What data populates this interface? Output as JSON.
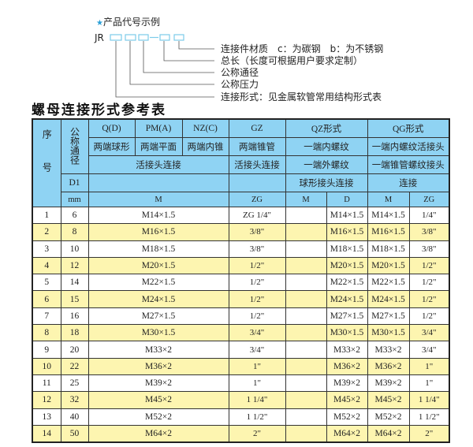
{
  "code_example": {
    "title": "产品代号示例",
    "prefix": "JR",
    "labels": [
      "连接件材质　c：为碳钢　b：为不锈钢",
      "总长（长度可根据用户要求定制）",
      "公称通径",
      "公称压力",
      "连接形式：见金属软管常用结构形式表"
    ],
    "accent": "#2a9fd6"
  },
  "table_title": "螺母连接形式参考表",
  "header": {
    "seq": "序号",
    "dn": "公称通径",
    "d1": "D1",
    "mm": "mm",
    "qd": "Q(D)",
    "pm": "PM(A)",
    "nz": "NZ(C)",
    "gz": "GZ",
    "qz": "QZ形式",
    "qg": "QG形式",
    "qd_desc": "两端球形",
    "pm_desc": "两端平面",
    "nz_desc": "两端内锥",
    "gz_desc": "两端锥管",
    "qz_desc1": "一端内螺纹",
    "qg_desc1": "一端内螺纹活接头",
    "union_conn": "活接头连接",
    "gz_conn": "活接头连接",
    "qz_desc2": "一端外螺纹",
    "qg_desc2": "一端锥管螺纹接头",
    "qz_desc3": "球形接头连接",
    "qg_desc3": "连接",
    "col_m": "M",
    "col_zg": "ZG",
    "qz_m": "M",
    "qz_d": "D",
    "qg_m": "M",
    "qg_zg": "ZG"
  },
  "rows": [
    {
      "seq": "1",
      "dn": "6",
      "m": "M14×1.5",
      "zg": "ZG 1/4\"",
      "qz_m": "",
      "qz_d": "M14×1.5",
      "qg_m": "M14×1.5",
      "qg_zg": "1/4\""
    },
    {
      "seq": "2",
      "dn": "8",
      "m": "M16×1.5",
      "zg": "3/8\"",
      "qz_m": "",
      "qz_d": "M16×1.5",
      "qg_m": "M16×1.5",
      "qg_zg": "3/8\""
    },
    {
      "seq": "3",
      "dn": "10",
      "m": "M18×1.5",
      "zg": "3/8\"",
      "qz_m": "",
      "qz_d": "M18×1.5",
      "qg_m": "M18×1.5",
      "qg_zg": "3/8\""
    },
    {
      "seq": "4",
      "dn": "12",
      "m": "M20×1.5",
      "zg": "1/2\"",
      "qz_m": "",
      "qz_d": "M20×1.5",
      "qg_m": "M20×1.5",
      "qg_zg": "1/2\""
    },
    {
      "seq": "5",
      "dn": "14",
      "m": "M22×1.5",
      "zg": "1/2\"",
      "qz_m": "",
      "qz_d": "M22×1.5",
      "qg_m": "M22×1.5",
      "qg_zg": "1/2\""
    },
    {
      "seq": "6",
      "dn": "15",
      "m": "M24×1.5",
      "zg": "1/2\"",
      "qz_m": "",
      "qz_d": "M24×1.5",
      "qg_m": "M24×1.5",
      "qg_zg": "1/2\""
    },
    {
      "seq": "7",
      "dn": "16",
      "m": "M27×1.5",
      "zg": "1/2\"",
      "qz_m": "",
      "qz_d": "M27×1.5",
      "qg_m": "M27×1.5",
      "qg_zg": "1/2\""
    },
    {
      "seq": "8",
      "dn": "18",
      "m": "M30×1.5",
      "zg": "3/4\"",
      "qz_m": "",
      "qz_d": "M30×1.5",
      "qg_m": "M30×1.5",
      "qg_zg": "3/4\""
    },
    {
      "seq": "9",
      "dn": "20",
      "m": "M33×2",
      "zg": "3/4\"",
      "qz_m": "",
      "qz_d": "M33×2",
      "qg_m": "M33×2",
      "qg_zg": "3/4\""
    },
    {
      "seq": "10",
      "dn": "22",
      "m": "M36×2",
      "zg": "1\"",
      "qz_m": "",
      "qz_d": "M36×2",
      "qg_m": "M36×2",
      "qg_zg": "1\""
    },
    {
      "seq": "11",
      "dn": "25",
      "m": "M39×2",
      "zg": "1\"",
      "qz_m": "",
      "qz_d": "M39×2",
      "qg_m": "M39×2",
      "qg_zg": "1\""
    },
    {
      "seq": "12",
      "dn": "32",
      "m": "M45×2",
      "zg": "1 1/4\"",
      "qz_m": "",
      "qz_d": "M45×2",
      "qg_m": "M45×2",
      "qg_zg": "1 1/4\""
    },
    {
      "seq": "13",
      "dn": "40",
      "m": "M52×2",
      "zg": "1 1/2\"",
      "qz_m": "",
      "qz_d": "M52×2",
      "qg_m": "M52×2",
      "qg_zg": "1 1/2\""
    },
    {
      "seq": "14",
      "dn": "50",
      "m": "M64×2",
      "zg": "2\"",
      "qz_m": "",
      "qz_d": "M64×2",
      "qg_m": "M64×2",
      "qg_zg": "2\""
    }
  ],
  "colors": {
    "header_bg": "#8fd3f3",
    "stripe_bg": "#fdf5b0",
    "line": "#8fd3f3"
  }
}
